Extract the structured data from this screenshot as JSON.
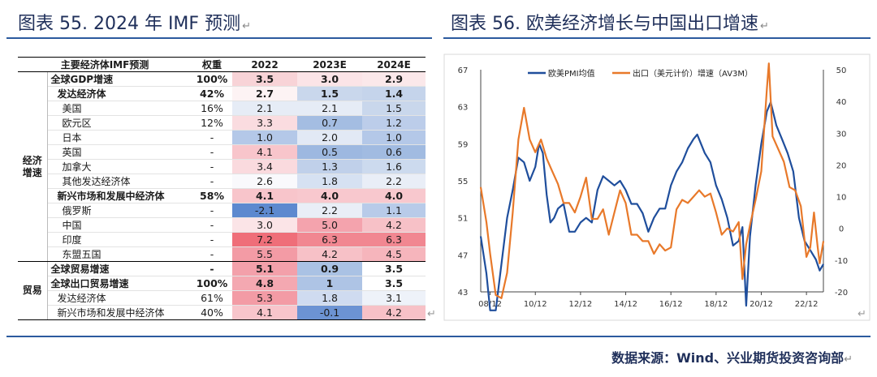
{
  "left_title": "图表 55. 2024 年 IMF 预测",
  "right_title": "图表 56.  欧美经济增长与中国出口增速",
  "return_mark": "↵",
  "source": "数据来源：Wind、兴业期货投资咨询部",
  "table": {
    "headers": [
      "主要经济体IMF预测",
      "权重",
      "2022",
      "2023E",
      "2024E"
    ],
    "groups": [
      {
        "label": "经济增速",
        "rows": [
          {
            "name": "全球GDP增速",
            "weight": "100%",
            "v": [
              "3.5",
              "3.0",
              "2.9"
            ],
            "c": [
              "#f8d3d7",
              "#fbe4e7",
              "#fbe8ea"
            ],
            "bold": true,
            "indent": 0
          },
          {
            "name": "发达经济体",
            "weight": "42%",
            "v": [
              "2.7",
              "1.5",
              "1.4"
            ],
            "c": [
              "#fdf3f4",
              "#c9d7ec",
              "#c5d4eb"
            ],
            "bold": true,
            "indent": 1
          },
          {
            "name": "美国",
            "weight": "16%",
            "v": [
              "2.1",
              "2.1",
              "1.5"
            ],
            "c": [
              "#e6ecf6",
              "#e6ecf6",
              "#c9d7ec"
            ],
            "bold": false,
            "indent": 2
          },
          {
            "name": "欧元区",
            "weight": "12%",
            "v": [
              "3.3",
              "0.7",
              "1.2"
            ],
            "c": [
              "#fadce0",
              "#a4bde2",
              "#bccdea"
            ],
            "bold": false,
            "indent": 2
          },
          {
            "name": "日本",
            "weight": "-",
            "v": [
              "1.0",
              "2.0",
              "1.0"
            ],
            "c": [
              "#b4c8e8",
              "#e2e9f5",
              "#b4c8e8"
            ],
            "bold": false,
            "indent": 2
          },
          {
            "name": "英国",
            "weight": "-",
            "v": [
              "4.1",
              "0.5",
              "0.6"
            ],
            "c": [
              "#f8c5cb",
              "#9db8e0",
              "#a1bbe1"
            ],
            "bold": false,
            "indent": 2
          },
          {
            "name": "加拿大",
            "weight": "-",
            "v": [
              "3.4",
              "1.3",
              "1.6"
            ],
            "c": [
              "#fadade",
              "#c0d0ea",
              "#ccdaee"
            ],
            "bold": false,
            "indent": 2
          },
          {
            "name": "其他发达经济体",
            "weight": "-",
            "v": [
              "2.6",
              "1.8",
              "2.2"
            ],
            "c": [
              "#f9f9fc",
              "#d6e1f2",
              "#e9eef7"
            ],
            "bold": false,
            "indent": 2
          },
          {
            "name": "新兴市场和发展中经济体",
            "weight": "58%",
            "v": [
              "4.1",
              "4.0",
              "4.0"
            ],
            "c": [
              "#f8c5cb",
              "#f8c8ce",
              "#f8c8ce"
            ],
            "bold": true,
            "indent": 1
          },
          {
            "name": "俄罗斯",
            "weight": "-",
            "v": [
              "-2.1",
              "2.2",
              "1.1"
            ],
            "c": [
              "#5d89cf",
              "#e9eef7",
              "#b8cbe9"
            ],
            "bold": false,
            "indent": 2
          },
          {
            "name": "中国",
            "weight": "-",
            "v": [
              "3.0",
              "5.0",
              "4.2"
            ],
            "c": [
              "#fbe4e7",
              "#f4a3ad",
              "#f7c1c7"
            ],
            "bold": false,
            "indent": 2
          },
          {
            "name": "印度",
            "weight": "-",
            "v": [
              "7.2",
              "6.3",
              "6.3"
            ],
            "c": [
              "#ef6e79",
              "#f18791",
              "#f18791"
            ],
            "bold": false,
            "indent": 2
          },
          {
            "name": "东盟五国",
            "weight": "-",
            "v": [
              "5.5",
              "4.2",
              "4.5"
            ],
            "c": [
              "#f39ba5",
              "#f7c1c7",
              "#f6b5bc"
            ],
            "bold": false,
            "indent": 2
          }
        ]
      },
      {
        "label": "贸易",
        "rows": [
          {
            "name": "全球贸易增速",
            "weight": "-",
            "v": [
              "5.1",
              "0.9",
              "3.5"
            ],
            "c": [
              "#f3a0aa",
              "#aac2e4",
              "#ffffff"
            ],
            "bold": true,
            "indent": 0
          },
          {
            "name": "全球出口贸易增速",
            "weight": "100%",
            "v": [
              "4.8",
              "1",
              "3.5"
            ],
            "c": [
              "#f4a8b1",
              "#aec4e5",
              "#ffffff"
            ],
            "bold": true,
            "indent": 0
          },
          {
            "name": "发达经济体",
            "weight": "61%",
            "v": [
              "5.3",
              "1.8",
              "3.1"
            ],
            "c": [
              "#f39ba5",
              "#cfdbf0",
              "#eef2f9"
            ],
            "bold": false,
            "indent": 1
          },
          {
            "name": "新兴市场和发展中经济体",
            "weight": "40%",
            "v": [
              "4.1",
              "-0.1",
              "4.2"
            ],
            "c": [
              "#f8c5cb",
              "#6c93d3",
              "#f7c1c7"
            ],
            "bold": false,
            "indent": 1
          }
        ]
      }
    ]
  },
  "chart_data": {
    "type": "line",
    "title": "",
    "x_ticks": [
      "08/12",
      "10/12",
      "12/12",
      "14/12",
      "16/12",
      "18/12",
      "20/12",
      "22/12"
    ],
    "x_range": [
      "2008-07",
      "2023-09"
    ],
    "left_axis": {
      "ylim": [
        43,
        67
      ],
      "ticks": [
        43,
        47,
        51,
        55,
        59,
        63,
        67
      ]
    },
    "right_axis": {
      "ylim": [
        -20,
        50
      ],
      "ticks": [
        -20,
        -10,
        0,
        10,
        20,
        30,
        40,
        50
      ]
    },
    "legend_position": "top",
    "series": [
      {
        "name": "欧美PMI均值",
        "axis": "left",
        "color": "#1f4e9c",
        "points": [
          [
            "2008-07",
            49
          ],
          [
            "2008-10",
            45
          ],
          [
            "2008-12",
            41
          ],
          [
            "2009-03",
            41
          ],
          [
            "2009-06",
            46
          ],
          [
            "2009-09",
            51
          ],
          [
            "2009-12",
            54
          ],
          [
            "2010-03",
            57.5
          ],
          [
            "2010-06",
            57
          ],
          [
            "2010-09",
            55
          ],
          [
            "2010-12",
            56.5
          ],
          [
            "2011-02",
            59
          ],
          [
            "2011-04",
            58
          ],
          [
            "2011-06",
            53.5
          ],
          [
            "2011-08",
            50.5
          ],
          [
            "2011-10",
            51
          ],
          [
            "2011-12",
            52
          ],
          [
            "2012-03",
            52.5
          ],
          [
            "2012-06",
            49.5
          ],
          [
            "2012-09",
            49.5
          ],
          [
            "2012-12",
            50.5
          ],
          [
            "2013-03",
            51
          ],
          [
            "2013-06",
            50.5
          ],
          [
            "2013-09",
            54
          ],
          [
            "2013-12",
            55.5
          ],
          [
            "2014-03",
            55
          ],
          [
            "2014-06",
            54.5
          ],
          [
            "2014-09",
            55
          ],
          [
            "2014-12",
            54
          ],
          [
            "2015-03",
            52.5
          ],
          [
            "2015-06",
            52.5
          ],
          [
            "2015-09",
            51.5
          ],
          [
            "2015-12",
            49.5
          ],
          [
            "2016-03",
            51
          ],
          [
            "2016-06",
            52
          ],
          [
            "2016-09",
            52
          ],
          [
            "2016-12",
            54.5
          ],
          [
            "2017-03",
            56
          ],
          [
            "2017-06",
            57
          ],
          [
            "2017-09",
            58.5
          ],
          [
            "2017-12",
            59.5
          ],
          [
            "2018-02",
            60
          ],
          [
            "2018-06",
            58
          ],
          [
            "2018-09",
            57
          ],
          [
            "2018-12",
            54.5
          ],
          [
            "2019-03",
            53
          ],
          [
            "2019-06",
            51
          ],
          [
            "2019-09",
            48
          ],
          [
            "2019-12",
            48.5
          ],
          [
            "2020-02",
            50
          ],
          [
            "2020-04",
            41.5
          ],
          [
            "2020-06",
            49
          ],
          [
            "2020-09",
            54.5
          ],
          [
            "2020-12",
            59
          ],
          [
            "2021-03",
            62.5
          ],
          [
            "2021-05",
            63.5
          ],
          [
            "2021-08",
            61
          ],
          [
            "2021-11",
            59.5
          ],
          [
            "2022-02",
            58
          ],
          [
            "2022-05",
            56
          ],
          [
            "2022-08",
            51
          ],
          [
            "2022-11",
            48.5
          ],
          [
            "2023-02",
            47.5
          ],
          [
            "2023-05",
            46.5
          ],
          [
            "2023-07",
            45.3
          ],
          [
            "2023-09",
            46
          ]
        ]
      },
      {
        "name": "出口（美元计价）增速（AV3M）",
        "axis": "right",
        "color": "#e8792a",
        "points": [
          [
            "2008-07",
            13
          ],
          [
            "2008-10",
            2
          ],
          [
            "2008-12",
            -8
          ],
          [
            "2009-03",
            -21
          ],
          [
            "2009-06",
            -22
          ],
          [
            "2009-09",
            -14
          ],
          [
            "2009-12",
            5
          ],
          [
            "2010-03",
            28
          ],
          [
            "2010-06",
            38
          ],
          [
            "2010-09",
            28
          ],
          [
            "2010-12",
            24
          ],
          [
            "2011-03",
            28
          ],
          [
            "2011-06",
            22
          ],
          [
            "2011-09",
            18
          ],
          [
            "2011-12",
            14
          ],
          [
            "2012-03",
            8
          ],
          [
            "2012-06",
            8
          ],
          [
            "2012-09",
            5
          ],
          [
            "2012-12",
            10
          ],
          [
            "2013-03",
            16
          ],
          [
            "2013-06",
            3
          ],
          [
            "2013-09",
            3
          ],
          [
            "2013-12",
            6
          ],
          [
            "2014-03",
            -2
          ],
          [
            "2014-06",
            5
          ],
          [
            "2014-09",
            12
          ],
          [
            "2014-12",
            8
          ],
          [
            "2015-03",
            -2
          ],
          [
            "2015-06",
            -2
          ],
          [
            "2015-09",
            -4
          ],
          [
            "2015-12",
            -4
          ],
          [
            "2016-03",
            -8
          ],
          [
            "2016-06",
            -5
          ],
          [
            "2016-09",
            -7
          ],
          [
            "2016-12",
            -6
          ],
          [
            "2017-03",
            6
          ],
          [
            "2017-06",
            9
          ],
          [
            "2017-09",
            8
          ],
          [
            "2017-12",
            10
          ],
          [
            "2018-03",
            12
          ],
          [
            "2018-06",
            10
          ],
          [
            "2018-09",
            11
          ],
          [
            "2018-12",
            5
          ],
          [
            "2019-03",
            -2
          ],
          [
            "2019-06",
            0
          ],
          [
            "2019-09",
            -1
          ],
          [
            "2019-12",
            2
          ],
          [
            "2020-02",
            -16
          ],
          [
            "2020-04",
            -5
          ],
          [
            "2020-06",
            1
          ],
          [
            "2020-09",
            9
          ],
          [
            "2020-12",
            18
          ],
          [
            "2021-03",
            44
          ],
          [
            "2021-04",
            52
          ],
          [
            "2021-06",
            29
          ],
          [
            "2021-09",
            25
          ],
          [
            "2021-12",
            21
          ],
          [
            "2022-03",
            13
          ],
          [
            "2022-06",
            12
          ],
          [
            "2022-09",
            7
          ],
          [
            "2022-12",
            -9
          ],
          [
            "2023-02",
            -6
          ],
          [
            "2023-04",
            5
          ],
          [
            "2023-06",
            -6
          ],
          [
            "2023-07",
            -11
          ],
          [
            "2023-09",
            -4
          ]
        ]
      }
    ]
  }
}
